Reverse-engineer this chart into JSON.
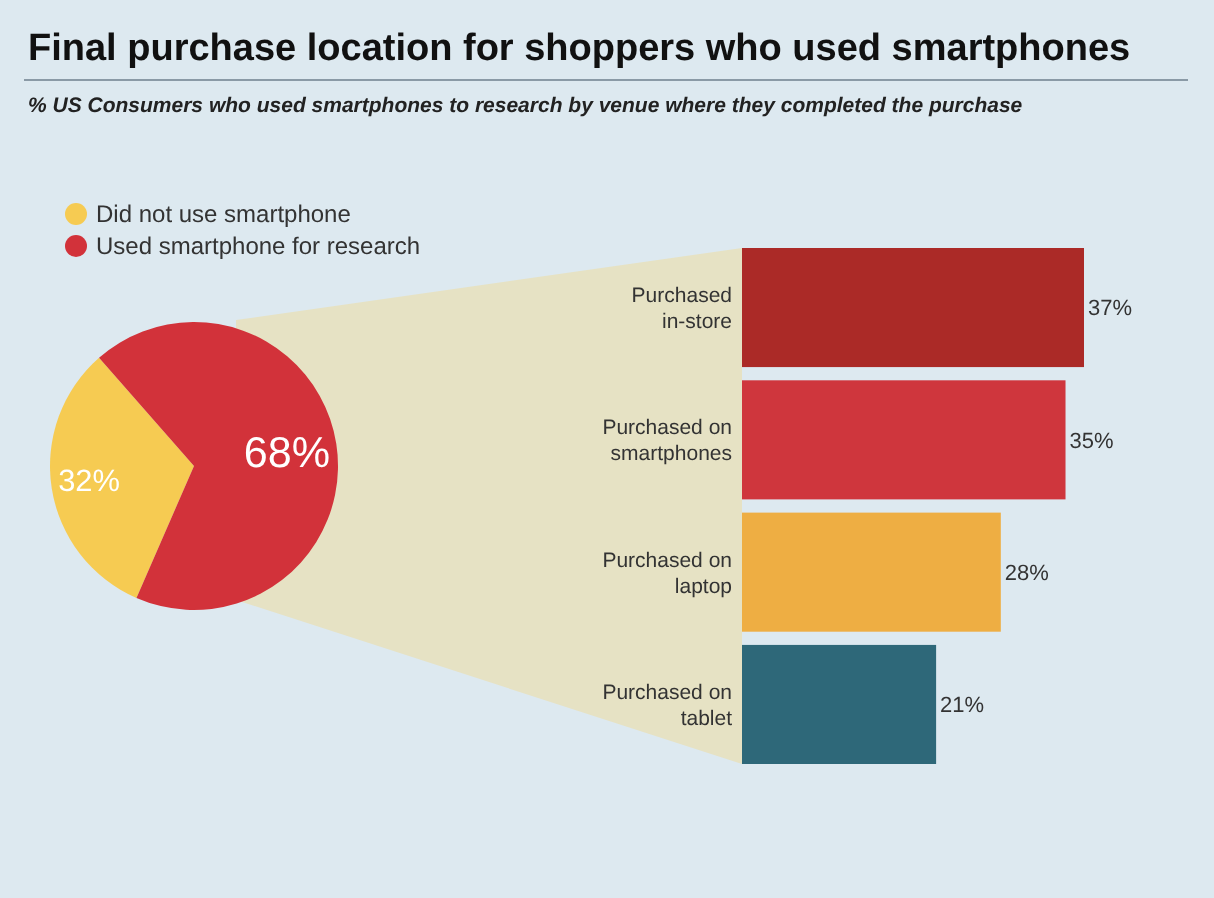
{
  "chart_data": [
    {
      "type": "pie",
      "title": "Final purchase location for shoppers who used smartphones",
      "subtitle": "% US Consumers who used smartphones to research by venue where they completed the purchase",
      "categories": [
        "Did not use smartphone",
        "Used smartphone for research"
      ],
      "values": [
        32,
        68
      ],
      "value_labels": [
        "32%",
        "68%"
      ],
      "colors": [
        "#f6cb52",
        "#d2323a"
      ],
      "legend": "top"
    },
    {
      "type": "bar",
      "orientation": "horizontal",
      "categories": [
        "Purchased in-store",
        "Purchased on smartphones",
        "Purchased on laptop",
        "Purchased on tablet"
      ],
      "values": [
        37,
        35,
        28,
        21
      ],
      "value_labels": [
        "37%",
        "35%",
        "28%",
        "21%"
      ],
      "colors": [
        "#ab2a27",
        "#cf363d",
        "#eeae43",
        "#2e6879"
      ]
    }
  ]
}
